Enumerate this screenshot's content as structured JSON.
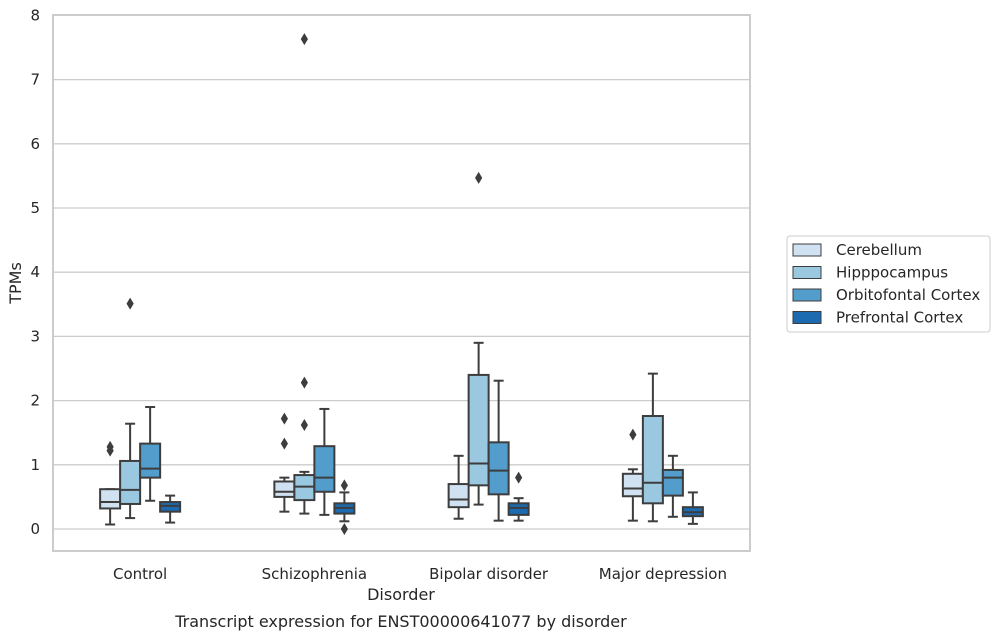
{
  "caption": "Transcript expression for ENST00000641077 by disorder",
  "chart_data": {
    "type": "boxplot",
    "xlabel": "Disorder",
    "ylabel": "TPMs",
    "ylim": [
      -0.35,
      8
    ],
    "yticks": [
      0,
      1,
      2,
      3,
      4,
      5,
      6,
      7,
      8
    ],
    "grid": true,
    "legend_placement": "center-right outside",
    "categories": [
      "Control",
      "Schizophrenia",
      "Bipolar disorder",
      "Major depression"
    ],
    "series": [
      {
        "name": "Cerebellum",
        "color": "#d0e1f2",
        "boxes": [
          {
            "whisker_low": 0.07,
            "q1": 0.32,
            "median": 0.42,
            "q3": 0.62,
            "whisker_high": 0.62,
            "outliers": [
              1.22,
              1.28
            ]
          },
          {
            "whisker_low": 0.27,
            "q1": 0.5,
            "median": 0.58,
            "q3": 0.74,
            "whisker_high": 0.8,
            "outliers": [
              1.33,
              1.72
            ]
          },
          {
            "whisker_low": 0.16,
            "q1": 0.34,
            "median": 0.46,
            "q3": 0.7,
            "whisker_high": 1.14,
            "outliers": []
          },
          {
            "whisker_low": 0.13,
            "q1": 0.51,
            "median": 0.63,
            "q3": 0.86,
            "whisker_high": 0.93,
            "outliers": [
              1.47
            ]
          }
        ]
      },
      {
        "name": "Hipppocampus",
        "color": "#9ac8e0",
        "boxes": [
          {
            "whisker_low": 0.17,
            "q1": 0.39,
            "median": 0.61,
            "q3": 1.06,
            "whisker_high": 1.64,
            "outliers": [
              3.51
            ]
          },
          {
            "whisker_low": 0.24,
            "q1": 0.45,
            "median": 0.66,
            "q3": 0.84,
            "whisker_high": 0.89,
            "outliers": [
              1.62,
              2.28,
              7.63
            ]
          },
          {
            "whisker_low": 0.38,
            "q1": 0.68,
            "median": 1.02,
            "q3": 2.4,
            "whisker_high": 2.9,
            "outliers": [
              5.47
            ]
          },
          {
            "whisker_low": 0.12,
            "q1": 0.4,
            "median": 0.72,
            "q3": 1.76,
            "whisker_high": 2.42,
            "outliers": []
          }
        ]
      },
      {
        "name": "Orbitofontal Cortex",
        "color": "#529dcc",
        "boxes": [
          {
            "whisker_low": 0.44,
            "q1": 0.8,
            "median": 0.94,
            "q3": 1.33,
            "whisker_high": 1.9,
            "outliers": []
          },
          {
            "whisker_low": 0.22,
            "q1": 0.58,
            "median": 0.8,
            "q3": 1.29,
            "whisker_high": 1.87,
            "outliers": []
          },
          {
            "whisker_low": 0.13,
            "q1": 0.54,
            "median": 0.91,
            "q3": 1.35,
            "whisker_high": 2.31,
            "outliers": []
          },
          {
            "whisker_low": 0.19,
            "q1": 0.52,
            "median": 0.8,
            "q3": 0.92,
            "whisker_high": 1.14,
            "outliers": []
          }
        ]
      },
      {
        "name": "Prefrontal Cortex",
        "color": "#1c6aaf",
        "boxes": [
          {
            "whisker_low": 0.1,
            "q1": 0.27,
            "median": 0.36,
            "q3": 0.42,
            "whisker_high": 0.52,
            "outliers": []
          },
          {
            "whisker_low": 0.12,
            "q1": 0.24,
            "median": 0.33,
            "q3": 0.4,
            "whisker_high": 0.57,
            "outliers": [
              0.0,
              0.68
            ]
          },
          {
            "whisker_low": 0.13,
            "q1": 0.22,
            "median": 0.33,
            "q3": 0.4,
            "whisker_high": 0.48,
            "outliers": [
              0.8
            ]
          },
          {
            "whisker_low": 0.08,
            "q1": 0.2,
            "median": 0.26,
            "q3": 0.34,
            "whisker_high": 0.57,
            "outliers": []
          }
        ]
      }
    ]
  }
}
